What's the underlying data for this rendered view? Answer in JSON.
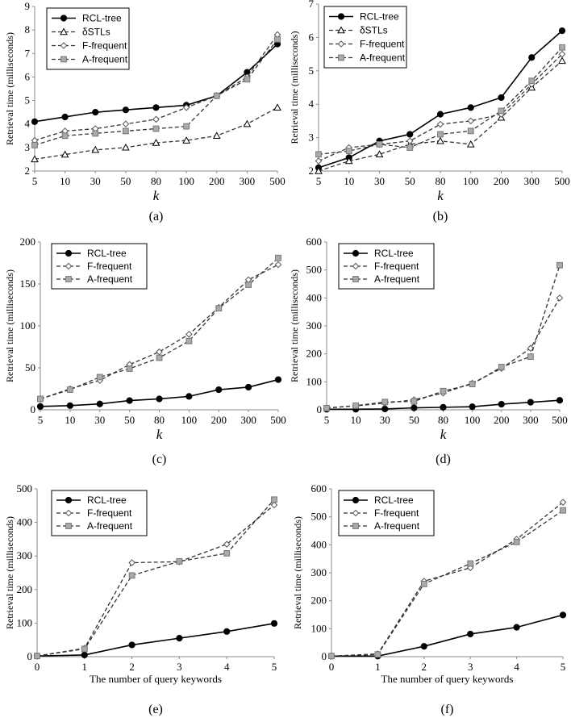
{
  "chart_data": [
    {
      "caption": "(a)",
      "type": "line",
      "categories": [
        "5",
        "10",
        "30",
        "50",
        "80",
        "100",
        "200",
        "300",
        "500"
      ],
      "yticks": [
        "2",
        "3",
        "4",
        "5",
        "6",
        "7",
        "8",
        "9"
      ],
      "ylim": [
        2,
        9
      ],
      "ylabel": "Retrieval time (milliseconds)",
      "xlabel": "k",
      "series": [
        {
          "name": "RCL-tree",
          "marker": "circle",
          "values": [
            4.1,
            4.3,
            4.5,
            4.6,
            4.7,
            4.8,
            5.2,
            6.2,
            7.4
          ]
        },
        {
          "name": "δSTLs",
          "marker": "triangle",
          "values": [
            2.5,
            2.7,
            2.9,
            3.0,
            3.2,
            3.3,
            3.5,
            4.0,
            4.7
          ]
        },
        {
          "name": "F-frequent",
          "marker": "diamond",
          "values": [
            3.3,
            3.7,
            3.8,
            4.0,
            4.2,
            4.7,
            5.2,
            6.0,
            7.8
          ]
        },
        {
          "name": "A-frequent",
          "marker": "square",
          "values": [
            3.1,
            3.5,
            3.6,
            3.7,
            3.8,
            3.9,
            5.2,
            5.9,
            7.6
          ]
        }
      ]
    },
    {
      "caption": "(b)",
      "type": "line",
      "categories": [
        "5",
        "10",
        "30",
        "50",
        "80",
        "100",
        "200",
        "300",
        "500"
      ],
      "yticks": [
        "2",
        "3",
        "4",
        "5",
        "6",
        "7"
      ],
      "ylim": [
        2,
        7
      ],
      "ylabel": "Retrieval time (milliseconds)",
      "xlabel": "k",
      "series": [
        {
          "name": "RCL-tree",
          "marker": "circle",
          "values": [
            2.1,
            2.4,
            2.9,
            3.1,
            3.7,
            3.9,
            4.2,
            5.4,
            6.2
          ]
        },
        {
          "name": "δSTLs",
          "marker": "triangle",
          "values": [
            2.0,
            2.3,
            2.5,
            2.8,
            2.9,
            2.8,
            3.6,
            4.5,
            5.3
          ]
        },
        {
          "name": "F-frequent",
          "marker": "diamond",
          "values": [
            2.3,
            2.7,
            2.8,
            2.9,
            3.4,
            3.5,
            3.7,
            4.6,
            5.5
          ]
        },
        {
          "name": "A-frequent",
          "marker": "square",
          "values": [
            2.5,
            2.6,
            2.8,
            2.7,
            3.1,
            3.2,
            3.8,
            4.7,
            5.7
          ]
        }
      ]
    },
    {
      "caption": "(c)",
      "type": "line",
      "categories": [
        "5",
        "10",
        "30",
        "50",
        "80",
        "100",
        "200",
        "300",
        "500"
      ],
      "yticks": [
        "0",
        "50",
        "100",
        "150",
        "200"
      ],
      "ylim": [
        0,
        200
      ],
      "ylabel": "Retrieval time (milliseconds)",
      "xlabel": "k",
      "series": [
        {
          "name": "RCL-tree",
          "marker": "circle",
          "values": [
            4,
            5,
            7,
            11,
            13,
            16,
            24,
            27,
            36
          ]
        },
        {
          "name": "F-frequent",
          "marker": "diamond",
          "values": [
            13,
            25,
            35,
            54,
            69,
            90,
            122,
            155,
            173
          ]
        },
        {
          "name": "A-frequent",
          "marker": "square",
          "values": [
            13,
            24,
            39,
            49,
            62,
            82,
            121,
            149,
            181
          ]
        }
      ]
    },
    {
      "caption": "(d)",
      "type": "line",
      "categories": [
        "5",
        "10",
        "30",
        "50",
        "80",
        "100",
        "200",
        "300",
        "500"
      ],
      "yticks": [
        "0",
        "100",
        "200",
        "300",
        "400",
        "500",
        "600"
      ],
      "ylim": [
        0,
        600
      ],
      "ylabel": "Retrieval time (milliseconds)",
      "xlabel": "k",
      "series": [
        {
          "name": "RCL-tree",
          "marker": "circle",
          "values": [
            2,
            2,
            3,
            7,
            9,
            11,
            20,
            27,
            34
          ]
        },
        {
          "name": "F-frequent",
          "marker": "diamond",
          "values": [
            7,
            14,
            24,
            36,
            60,
            95,
            148,
            220,
            400
          ]
        },
        {
          "name": "A-frequent",
          "marker": "square",
          "values": [
            6,
            15,
            28,
            30,
            67,
            92,
            153,
            190,
            517
          ]
        }
      ]
    },
    {
      "caption": "(e)",
      "type": "line",
      "categories": [
        "0",
        "1",
        "2",
        "3",
        "4",
        "5"
      ],
      "yticks": [
        "0",
        "100",
        "200",
        "300",
        "400",
        "500"
      ],
      "ylim": [
        0,
        500
      ],
      "ylabel": "Retrieval time (milliseconds)",
      "xlabel": "The number of query keywords",
      "series": [
        {
          "name": "RCL-tree",
          "marker": "circle",
          "values": [
            2,
            5,
            35,
            55,
            75,
            99
          ]
        },
        {
          "name": "F-frequent",
          "marker": "diamond",
          "values": [
            2,
            25,
            280,
            283,
            335,
            452
          ]
        },
        {
          "name": "A-frequent",
          "marker": "square",
          "values": [
            2,
            23,
            242,
            284,
            308,
            468
          ]
        }
      ]
    },
    {
      "caption": "(f)",
      "type": "line",
      "categories": [
        "0",
        "1",
        "2",
        "3",
        "4",
        "5"
      ],
      "yticks": [
        "0",
        "100",
        "200",
        "300",
        "400",
        "500",
        "600"
      ],
      "ylim": [
        0,
        600
      ],
      "ylabel": "Retrieval time (milliseconds)",
      "xlabel": "The number of query keywords",
      "series": [
        {
          "name": "RCL-tree",
          "marker": "circle",
          "values": [
            2,
            2,
            37,
            81,
            105,
            149
          ]
        },
        {
          "name": "F-frequent",
          "marker": "diamond",
          "values": [
            2,
            10,
            270,
            318,
            420,
            552
          ]
        },
        {
          "name": "A-frequent",
          "marker": "square",
          "values": [
            2,
            8,
            260,
            333,
            410,
            523
          ]
        }
      ]
    }
  ]
}
